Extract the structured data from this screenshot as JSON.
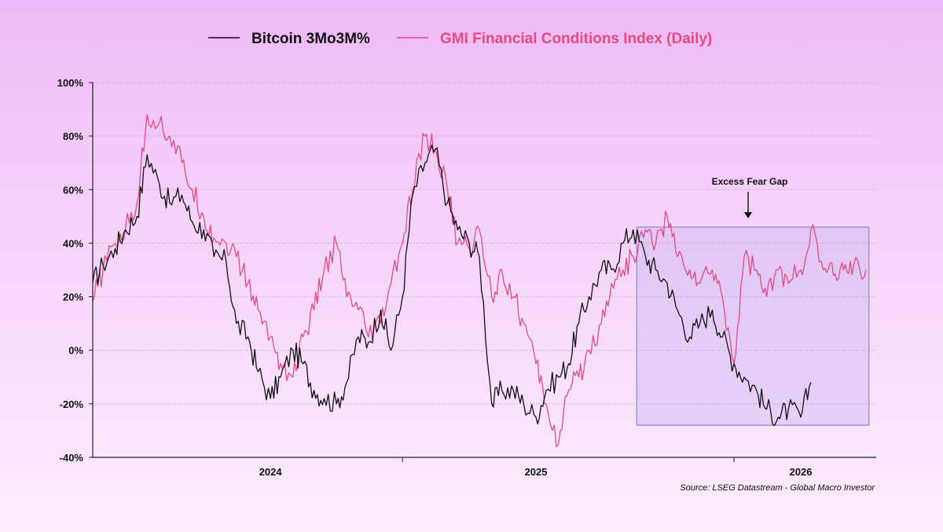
{
  "chart_data": {
    "type": "line",
    "title": "",
    "xlabel": "",
    "ylabel": "",
    "ylim": [
      -40,
      100
    ],
    "xlim": [
      "2023-05-01",
      "2026-04-15"
    ],
    "y_ticks": [
      "100%",
      "80%",
      "60%",
      "40%",
      "20%",
      "0%",
      "-20%",
      "-40%"
    ],
    "y_tick_values": [
      100,
      80,
      60,
      40,
      20,
      0,
      -20,
      -40
    ],
    "x_tick_labels": [
      "2024",
      "2025",
      "2026"
    ],
    "x_tick_label_dates": [
      "2024-01-01",
      "2025-01-01",
      "2026-01-01"
    ],
    "x_tick_mark_dates": [
      "2024-07-01",
      "2025-10-01"
    ],
    "grid": true,
    "legend_position": "top-center",
    "series": [
      {
        "name": "Bitcoin 3Mo3M%",
        "color": "#111111",
        "x": [
          "2023-05-01",
          "2023-05-15",
          "2023-06-01",
          "2023-06-15",
          "2023-07-01",
          "2023-07-15",
          "2023-08-01",
          "2023-08-15",
          "2023-09-01",
          "2023-09-15",
          "2023-10-01",
          "2023-10-15",
          "2023-11-01",
          "2023-11-15",
          "2023-12-01",
          "2023-12-15",
          "2024-01-01",
          "2024-01-15",
          "2024-02-01",
          "2024-02-15",
          "2024-03-01",
          "2024-03-15",
          "2024-04-01",
          "2024-04-15",
          "2024-05-01",
          "2024-05-15",
          "2024-06-01",
          "2024-06-15",
          "2024-07-01",
          "2024-07-15",
          "2024-08-01",
          "2024-08-15",
          "2024-09-01",
          "2024-09-15",
          "2024-10-01",
          "2024-10-15",
          "2024-11-01",
          "2024-11-15",
          "2024-12-01",
          "2024-12-15",
          "2025-01-01",
          "2025-01-15",
          "2025-02-01",
          "2025-02-15",
          "2025-03-01",
          "2025-03-15",
          "2025-04-01",
          "2025-04-15",
          "2025-05-01",
          "2025-05-15",
          "2025-06-01",
          "2025-06-15",
          "2025-07-01",
          "2025-07-15",
          "2025-08-01",
          "2025-08-15",
          "2025-09-01",
          "2025-09-15",
          "2025-10-01",
          "2025-10-15",
          "2025-11-01",
          "2025-11-15",
          "2025-12-01",
          "2025-12-15",
          "2026-01-01",
          "2026-01-15"
        ],
        "values": [
          25,
          32,
          38,
          45,
          50,
          73,
          62,
          55,
          58,
          48,
          45,
          35,
          33,
          10,
          5,
          -8,
          -18,
          -10,
          0,
          -5,
          -15,
          -18,
          -20,
          -12,
          5,
          3,
          15,
          0,
          20,
          58,
          70,
          75,
          55,
          45,
          40,
          35,
          -20,
          -15,
          -15,
          -20,
          -25,
          -15,
          -10,
          -5,
          10,
          20,
          30,
          30,
          40,
          45,
          35,
          30,
          25,
          15,
          5,
          10,
          15,
          5,
          -5,
          -10,
          -15,
          -22,
          -25,
          -22,
          -25,
          -12
        ]
      },
      {
        "name": "GMI Financial Conditions Index (Daily)",
        "color": "#e64b7e",
        "x": [
          "2023-05-01",
          "2023-05-15",
          "2023-06-01",
          "2023-06-15",
          "2023-07-01",
          "2023-07-15",
          "2023-08-01",
          "2023-08-15",
          "2023-09-01",
          "2023-09-15",
          "2023-10-01",
          "2023-10-15",
          "2023-11-01",
          "2023-11-15",
          "2023-12-01",
          "2023-12-15",
          "2024-01-01",
          "2024-01-15",
          "2024-02-01",
          "2024-02-15",
          "2024-03-01",
          "2024-03-15",
          "2024-04-01",
          "2024-04-15",
          "2024-05-01",
          "2024-05-15",
          "2024-06-01",
          "2024-06-15",
          "2024-07-01",
          "2024-07-15",
          "2024-08-01",
          "2024-08-15",
          "2024-09-01",
          "2024-09-15",
          "2024-10-01",
          "2024-10-15",
          "2024-11-01",
          "2024-11-15",
          "2024-12-01",
          "2024-12-15",
          "2025-01-01",
          "2025-01-15",
          "2025-02-01",
          "2025-02-15",
          "2025-03-01",
          "2025-03-15",
          "2025-04-01",
          "2025-04-15",
          "2025-05-01",
          "2025-05-15",
          "2025-06-01",
          "2025-06-15",
          "2025-07-01",
          "2025-07-15",
          "2025-08-01",
          "2025-08-15",
          "2025-09-01",
          "2025-09-15",
          "2025-10-01",
          "2025-10-15",
          "2025-11-01",
          "2025-11-15",
          "2025-12-01",
          "2025-12-15",
          "2026-01-01",
          "2026-01-15",
          "2026-02-01",
          "2026-02-15",
          "2026-03-01",
          "2026-03-15",
          "2026-04-01"
        ],
        "values": [
          18,
          30,
          40,
          45,
          55,
          88,
          85,
          80,
          70,
          60,
          50,
          42,
          40,
          35,
          25,
          15,
          5,
          -5,
          -10,
          5,
          15,
          30,
          40,
          20,
          15,
          5,
          10,
          25,
          40,
          60,
          80,
          75,
          60,
          40,
          38,
          45,
          20,
          30,
          20,
          10,
          -5,
          -20,
          -35,
          -15,
          -10,
          0,
          10,
          25,
          30,
          35,
          45,
          40,
          50,
          35,
          30,
          25,
          30,
          20,
          -5,
          35,
          30,
          20,
          30,
          25,
          30,
          45,
          30,
          28,
          30,
          32,
          30
        ]
      }
    ],
    "annotations": [
      {
        "text": "Excess Fear Gap",
        "arrow": "down"
      }
    ],
    "shaded_region": {
      "x_start": "2025-05-20",
      "x_end": "2026-04-05",
      "y_start": -28,
      "y_end": 46,
      "color": "#bbaaf0"
    },
    "source": "Source: LSEG Datastream - Global Macro Investor"
  }
}
